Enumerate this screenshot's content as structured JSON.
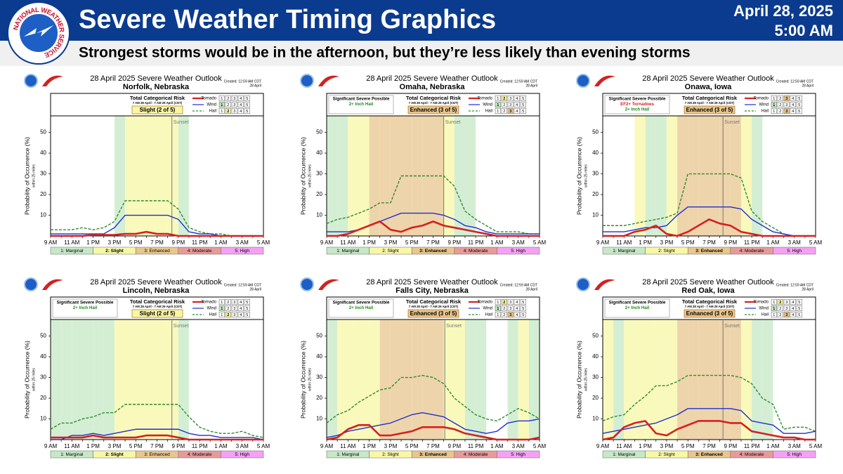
{
  "header": {
    "logo_text": "NATIONAL WEATHER SERVICE",
    "title": "Severe Weather Timing Graphics",
    "date": "April 28, 2025",
    "time": "5:00 AM",
    "subtitle": "Strongest storms would be in the afternoon, but they’re less likely than evening storms"
  },
  "risk_scale": {
    "levels": [
      1,
      2,
      3,
      4,
      5
    ],
    "labels": [
      "1: Marginal",
      "2: Slight",
      "3: Enhanced",
      "4: Moderate",
      "5: High"
    ],
    "colors": [
      "#c6e8c6",
      "#f7f7a6",
      "#e8c68d",
      "#e89a9a",
      "#f5a0f5"
    ]
  },
  "chart_data": [
    {
      "type": "line",
      "title": "28 April 2025 Severe Weather Outlook",
      "location": "Norfolk, Nebraska",
      "created": "Created: 12:59 AM CDT",
      "created_date": "28 April",
      "risk_title": "Total Categorical Risk",
      "risk_period": "7 AM 28 April - 7 AM 29 April (CDT)",
      "risk": "Slight (2 of 5)",
      "risk_level": 2,
      "notes": [],
      "ylabel": "Probability of Occurrence (%)",
      "ylabel_sub": "within 25 miles",
      "categories": [
        "9 AM",
        null,
        "11 AM",
        null,
        "1 PM",
        null,
        "3 PM",
        null,
        "5 PM",
        null,
        "7 PM",
        null,
        "9 PM",
        null,
        "11 PM",
        null,
        "1 AM",
        null,
        "3 AM",
        null,
        "5 AM"
      ],
      "ylim": [
        0,
        58
      ],
      "yticks": [
        10,
        20,
        30,
        40,
        50
      ],
      "risk_shading": [
        0,
        0,
        0,
        0,
        0,
        0,
        1,
        2,
        2,
        2,
        2,
        2,
        1,
        0,
        0,
        0,
        0,
        0,
        0,
        0
      ],
      "sunset": {
        "label": "Sunset",
        "x": 11.4
      },
      "series": [
        {
          "name": "Tornado",
          "color": "#d62020",
          "style": "solid",
          "risk_level": null,
          "values": [
            0,
            0,
            0,
            0,
            0.5,
            0.5,
            0.5,
            1,
            1,
            2,
            1,
            1,
            0,
            0,
            0,
            0,
            0,
            0,
            0,
            0,
            0
          ]
        },
        {
          "name": "Wind",
          "color": "#1f2fd0",
          "style": "solid",
          "risk_level": 1,
          "values": [
            1,
            1,
            1,
            1,
            1,
            1,
            4,
            10,
            10,
            10,
            10,
            10,
            8,
            2,
            1,
            1,
            0,
            0,
            0,
            0,
            0
          ]
        },
        {
          "name": "Hail",
          "color": "#2e8b2e",
          "style": "dashed",
          "risk_level": 2,
          "values": [
            3,
            3,
            3,
            4,
            3,
            4,
            7,
            17,
            17,
            17,
            17,
            17,
            13,
            4,
            2,
            1,
            1,
            0,
            0,
            0,
            0
          ]
        }
      ]
    },
    {
      "type": "line",
      "title": "28 April 2025 Severe Weather Outlook",
      "location": "Omaha, Nebraska",
      "created": "Created: 12:59 AM CDT",
      "created_date": "28 April",
      "risk_title": "Total Categorical Risk",
      "risk_period": "7 AM 28 April - 7 AM 29 April (CDT)",
      "risk": "Enhanced (3 of 5)",
      "risk_level": 3,
      "notes": [
        {
          "text": "Significant Severe Possible",
          "color": "#000000"
        },
        {
          "text": "2+ Inch Hail",
          "color": "#1a8a1a"
        }
      ],
      "ylabel": "Probability of Occurrence (%)",
      "ylabel_sub": "within 25 miles",
      "categories": [
        "9 AM",
        null,
        "11 AM",
        null,
        "1 PM",
        null,
        "3 PM",
        null,
        "5 PM",
        null,
        "7 PM",
        null,
        "9 PM",
        null,
        "11 PM",
        null,
        "1 AM",
        null,
        "3 AM",
        null,
        "5 AM"
      ],
      "ylim": [
        0,
        58
      ],
      "yticks": [
        10,
        20,
        30,
        40,
        50
      ],
      "risk_shading": [
        1,
        1,
        2,
        2,
        3,
        3,
        3,
        3,
        3,
        3,
        3,
        2,
        1,
        1,
        0,
        0,
        0,
        0,
        0,
        0
      ],
      "sunset": {
        "label": "Sunset",
        "x": 11.0
      },
      "series": [
        {
          "name": "Tornado",
          "color": "#d62020",
          "style": "solid",
          "risk_level": 2,
          "values": [
            0,
            0,
            1,
            3,
            5,
            7,
            3,
            2,
            4,
            5,
            7,
            5,
            4,
            3,
            2,
            1,
            0,
            0,
            0,
            0,
            0
          ]
        },
        {
          "name": "Wind",
          "color": "#1f2fd0",
          "style": "solid",
          "risk_level": 1,
          "values": [
            2,
            2,
            2,
            3,
            5,
            7,
            9,
            11,
            11,
            11,
            11,
            10,
            8,
            5,
            4,
            2,
            1,
            1,
            1,
            1,
            1
          ]
        },
        {
          "name": "Hail",
          "color": "#2e8b2e",
          "style": "dashed",
          "risk_level": 3,
          "values": [
            6,
            8,
            9,
            11,
            13,
            16,
            16,
            29,
            29,
            29,
            29,
            29,
            24,
            12,
            8,
            5,
            2,
            2,
            2,
            1,
            1
          ]
        }
      ]
    },
    {
      "type": "line",
      "title": "28 April 2025 Severe Weather Outlook",
      "location": "Onawa, Iowa",
      "created": "Created: 12:59 AM CDT",
      "created_date": "28 April",
      "risk_title": "Total Categorical Risk",
      "risk_period": "7 AM 28 April - 7 AM 29 April (CDT)",
      "risk": "Enhanced (3 of 5)",
      "risk_level": 3,
      "notes": [
        {
          "text": "Significant Severe Possible",
          "color": "#000000"
        },
        {
          "text": "EF2+ Tornadoes",
          "color": "#d62020"
        },
        {
          "text": "2+ Inch Hail",
          "color": "#1a8a1a"
        }
      ],
      "ylabel": "Probability of Occurrence (%)",
      "ylabel_sub": "within 25 miles",
      "categories": [
        "9 AM",
        null,
        "11 AM",
        null,
        "1 PM",
        null,
        "3 PM",
        null,
        "5 PM",
        null,
        "7 PM",
        null,
        "9 PM",
        null,
        "11 PM",
        null,
        "1 AM",
        null,
        "3 AM",
        null,
        "5 AM"
      ],
      "ylim": [
        0,
        58
      ],
      "yticks": [
        10,
        20,
        30,
        40,
        50
      ],
      "risk_shading": [
        0,
        0,
        0,
        2,
        1,
        1,
        2,
        3,
        3,
        3,
        3,
        3,
        3,
        2,
        1,
        0,
        0,
        0,
        0,
        0
      ],
      "sunset": {
        "label": "Sunset",
        "x": 11.3
      },
      "series": [
        {
          "name": "Tornado",
          "color": "#d62020",
          "style": "solid",
          "risk_level": 3,
          "values": [
            0,
            0,
            0,
            2,
            3,
            5,
            1,
            0,
            2,
            5,
            8,
            6,
            5,
            2,
            1,
            0,
            0,
            0,
            0,
            0,
            0
          ]
        },
        {
          "name": "Wind",
          "color": "#1f2fd0",
          "style": "solid",
          "risk_level": 1,
          "values": [
            2,
            2,
            2,
            3,
            4,
            4,
            5,
            10,
            14,
            14,
            14,
            14,
            14,
            13,
            8,
            5,
            2,
            1,
            0,
            0,
            0
          ]
        },
        {
          "name": "Hail",
          "color": "#2e8b2e",
          "style": "dashed",
          "risk_level": 3,
          "values": [
            5,
            5,
            5,
            6,
            7,
            8,
            9,
            11,
            30,
            30,
            30,
            30,
            30,
            28,
            12,
            7,
            4,
            1,
            0,
            0,
            0
          ]
        }
      ]
    },
    {
      "type": "line",
      "title": "28 April 2025 Severe Weather Outlook",
      "location": "Lincoln, Nebraska",
      "created": "Created: 12:59 AM CDT",
      "created_date": "28 April",
      "risk_title": "Total Categorical Risk",
      "risk_period": "7 AM 28 April - 7 AM 29 April (CDT)",
      "risk": "Slight (2 of 5)",
      "risk_level": 2,
      "notes": [
        {
          "text": "Significant Severe Possible",
          "color": "#000000"
        },
        {
          "text": "2+ Inch Hail",
          "color": "#1a8a1a"
        }
      ],
      "ylabel": "Probability of Occurrence (%)",
      "ylabel_sub": "within 25 miles",
      "categories": [
        "9 AM",
        null,
        "11 AM",
        null,
        "1 PM",
        null,
        "3 PM",
        null,
        "5 PM",
        null,
        "7 PM",
        null,
        "9 PM",
        null,
        "11 PM",
        null,
        "1 AM",
        null,
        "3 AM",
        null,
        "5 AM"
      ],
      "ylim": [
        0,
        58
      ],
      "yticks": [
        10,
        20,
        30,
        40,
        50
      ],
      "risk_shading": [
        1,
        1,
        1,
        1,
        1,
        1,
        2,
        2,
        2,
        2,
        2,
        2,
        1,
        0,
        0,
        0,
        0,
        0,
        0,
        0
      ],
      "sunset": {
        "label": "Sunset",
        "x": 11.4
      },
      "series": [
        {
          "name": "Tornado",
          "color": "#d62020",
          "style": "solid",
          "risk_level": null,
          "values": [
            1,
            1,
            1,
            1,
            2,
            1,
            1,
            1,
            1,
            2,
            2,
            2,
            1,
            0,
            0,
            0,
            0,
            0,
            0,
            0,
            0
          ]
        },
        {
          "name": "Wind",
          "color": "#1f2fd0",
          "style": "solid",
          "risk_level": 1,
          "values": [
            0,
            0,
            2,
            2,
            3,
            2,
            3,
            4,
            5,
            5,
            5,
            5,
            5,
            3,
            2,
            2,
            1,
            1,
            1,
            1,
            0
          ]
        },
        {
          "name": "Hail",
          "color": "#2e8b2e",
          "style": "dashed",
          "risk_level": 2,
          "values": [
            5,
            8,
            8,
            10,
            11,
            13,
            13,
            17,
            17,
            17,
            17,
            17,
            17,
            11,
            6,
            4,
            3,
            3,
            4,
            2,
            1
          ]
        }
      ]
    },
    {
      "type": "line",
      "title": "28 April 2025 Severe Weather Outlook",
      "location": "Falls City, Nebraska",
      "created": "Created: 12:59 AM CDT",
      "created_date": "28 April",
      "risk_title": "Total Categorical Risk",
      "risk_period": "7 AM 28 April - 7 AM 29 April (CDT)",
      "risk": "Enhanced (3 of 5)",
      "risk_level": 3,
      "notes": [
        {
          "text": "Significant Severe Possible",
          "color": "#000000"
        },
        {
          "text": "2+ Inch Hail",
          "color": "#1a8a1a"
        }
      ],
      "ylabel": "Probability of Occurrence (%)",
      "ylabel_sub": "within 25 miles",
      "categories": [
        "9 AM",
        null,
        "11 AM",
        null,
        "1 PM",
        null,
        "3 PM",
        null,
        "5 PM",
        null,
        "7 PM",
        null,
        "9 PM",
        null,
        "11 PM",
        null,
        "1 AM",
        null,
        "3 AM",
        null,
        "5 AM"
      ],
      "ylim": [
        0,
        58
      ],
      "yticks": [
        10,
        20,
        30,
        40,
        50
      ],
      "risk_shading": [
        1,
        2,
        2,
        2,
        2,
        3,
        3,
        3,
        3,
        3,
        3,
        2,
        2,
        1,
        1,
        0,
        0,
        1,
        2,
        1
      ],
      "sunset": {
        "label": "Sunset",
        "x": 11.1
      },
      "series": [
        {
          "name": "Tornado",
          "color": "#d62020",
          "style": "solid",
          "risk_level": 2,
          "values": [
            0,
            1,
            5,
            7,
            7,
            2,
            2,
            3,
            4,
            6,
            6,
            6,
            5,
            3,
            2,
            1,
            0,
            0,
            0,
            0,
            1
          ]
        },
        {
          "name": "Wind",
          "color": "#1f2fd0",
          "style": "solid",
          "risk_level": 1,
          "values": [
            1,
            2,
            4,
            5,
            6,
            7,
            8,
            10,
            12,
            13,
            12,
            11,
            8,
            5,
            4,
            3,
            4,
            8,
            9,
            9,
            10
          ]
        },
        {
          "name": "Hail",
          "color": "#2e8b2e",
          "style": "dashed",
          "risk_level": 3,
          "values": [
            8,
            12,
            14,
            18,
            21,
            24,
            25,
            30,
            30,
            31,
            30,
            27,
            20,
            16,
            12,
            10,
            9,
            12,
            15,
            13,
            10
          ]
        }
      ]
    },
    {
      "type": "line",
      "title": "28 April 2025 Severe Weather Outlook",
      "location": "Red Oak, Iowa",
      "created": "Created: 12:59 AM CDT",
      "created_date": "28 April",
      "risk_title": "Total Categorical Risk",
      "risk_period": "7 AM 28 April - 7 AM 29 April (CDT)",
      "risk": "Enhanced (3 of 5)",
      "risk_level": 3,
      "notes": [
        {
          "text": "Significant Severe Possible",
          "color": "#000000"
        },
        {
          "text": "2+ Inch Hail",
          "color": "#1a8a1a"
        }
      ],
      "ylabel": "Probability of Occurrence (%)",
      "ylabel_sub": "within 25 miles",
      "categories": [
        "9 AM",
        null,
        "11 AM",
        null,
        "1 PM",
        null,
        "3 PM",
        null,
        "5 PM",
        null,
        "7 PM",
        null,
        "9 PM",
        null,
        "11 PM",
        null,
        "1 AM",
        null,
        "3 AM",
        null,
        "5 AM"
      ],
      "ylim": [
        0,
        58
      ],
      "yticks": [
        10,
        20,
        30,
        40,
        50
      ],
      "risk_shading": [
        2,
        1,
        2,
        2,
        2,
        2,
        2,
        3,
        3,
        3,
        3,
        3,
        3,
        2,
        1,
        1,
        0,
        0,
        0,
        0
      ],
      "sunset": {
        "label": "Sunset",
        "x": 11.3
      },
      "series": [
        {
          "name": "Tornado",
          "color": "#d62020",
          "style": "solid",
          "risk_level": 2,
          "values": [
            0,
            1,
            6,
            8,
            9,
            3,
            2,
            5,
            7,
            9,
            9,
            9,
            8,
            8,
            4,
            3,
            2,
            1,
            1,
            0,
            0
          ]
        },
        {
          "name": "Wind",
          "color": "#1f2fd0",
          "style": "solid",
          "risk_level": 1,
          "values": [
            3,
            4,
            5,
            6,
            7,
            8,
            10,
            12,
            15,
            15,
            15,
            15,
            15,
            14,
            9,
            8,
            7,
            3,
            3,
            3,
            4
          ]
        },
        {
          "name": "Hail",
          "color": "#2e8b2e",
          "style": "dashed",
          "risk_level": 3,
          "values": [
            9,
            11,
            12,
            17,
            21,
            26,
            26,
            28,
            31,
            31,
            31,
            31,
            31,
            30,
            27,
            20,
            17,
            5,
            6,
            6,
            4
          ]
        }
      ]
    }
  ]
}
